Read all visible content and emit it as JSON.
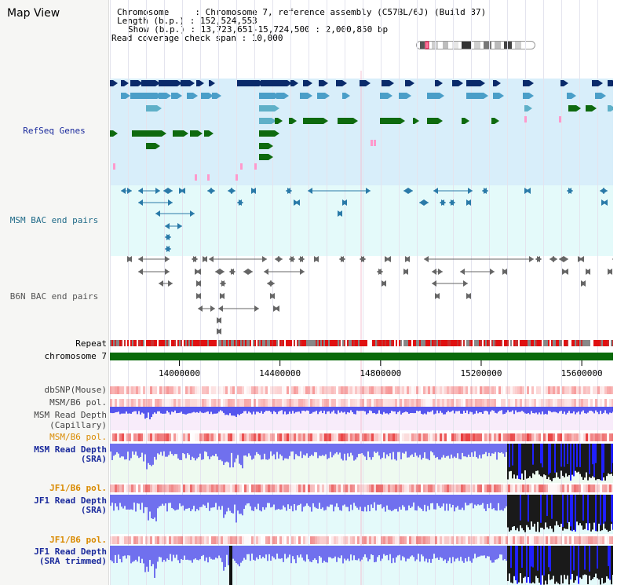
{
  "header": {
    "title": "Map View",
    "chromosome_line": "Chromosome     : Chromosome 7, reference assembly (C57BL/6J) (Build 37)",
    "length_line": "Length (b.p.) : 152,524,553",
    "show_line": "Show (b.p.) : 13,723,651-15,724,500 : 2,000,850 bp",
    "coverage_line": "Read coverage check span : 10,000"
  },
  "tracks": {
    "refseq": "RefSeq Genes",
    "msm_bac": "MSM BAC end pairs",
    "b6n_bac": "B6N BAC end pairs",
    "repeat": "Repeat",
    "chromosome": "chromosome 7",
    "dbsnp": "dbSNP(Mouse)",
    "msm_pol1": "MSM/B6 pol.",
    "msm_cap_1": "MSM Read Depth",
    "msm_cap_2": "(Capillary)",
    "msm_pol2": "MSM/B6 pol.",
    "msm_sra_1": "MSM Read Depth",
    "msm_sra_2": "(SRA)",
    "jf1_pol1": "JF1/B6 pol.",
    "jf1_sra_1": "JF1 Read Depth",
    "jf1_sra_2": "(SRA)",
    "jf1_pol2": "JF1/B6 pol.",
    "jf1_trim_1": "JF1 Read Depth",
    "jf1_trim_2": "(SRA trimmed)"
  },
  "axis": {
    "ticks": [
      "14000000",
      "14400000",
      "14800000",
      "15200000",
      "15600000"
    ],
    "tick_values": [
      14000000,
      14400000,
      14800000,
      15200000,
      15600000
    ],
    "range": [
      13723651,
      15724500
    ]
  },
  "colors": {
    "label_blue": "#1a2a9c",
    "label_teal": "#1f6a88",
    "label_gray": "#555555",
    "label_orange": "#d98a00",
    "refseq_bg": "#d8eefa",
    "bac_bg": "#e4fafa",
    "gene_dark": "#0a2a6a",
    "gene_mid": "#4a9ec8",
    "gene_light": "#5fb0c8",
    "gene_green": "#0e6a0e",
    "chrom_green": "#0a6a0a",
    "depth_blue": "#6a6ae8",
    "depth_dark": "#1a1a1a"
  }
}
